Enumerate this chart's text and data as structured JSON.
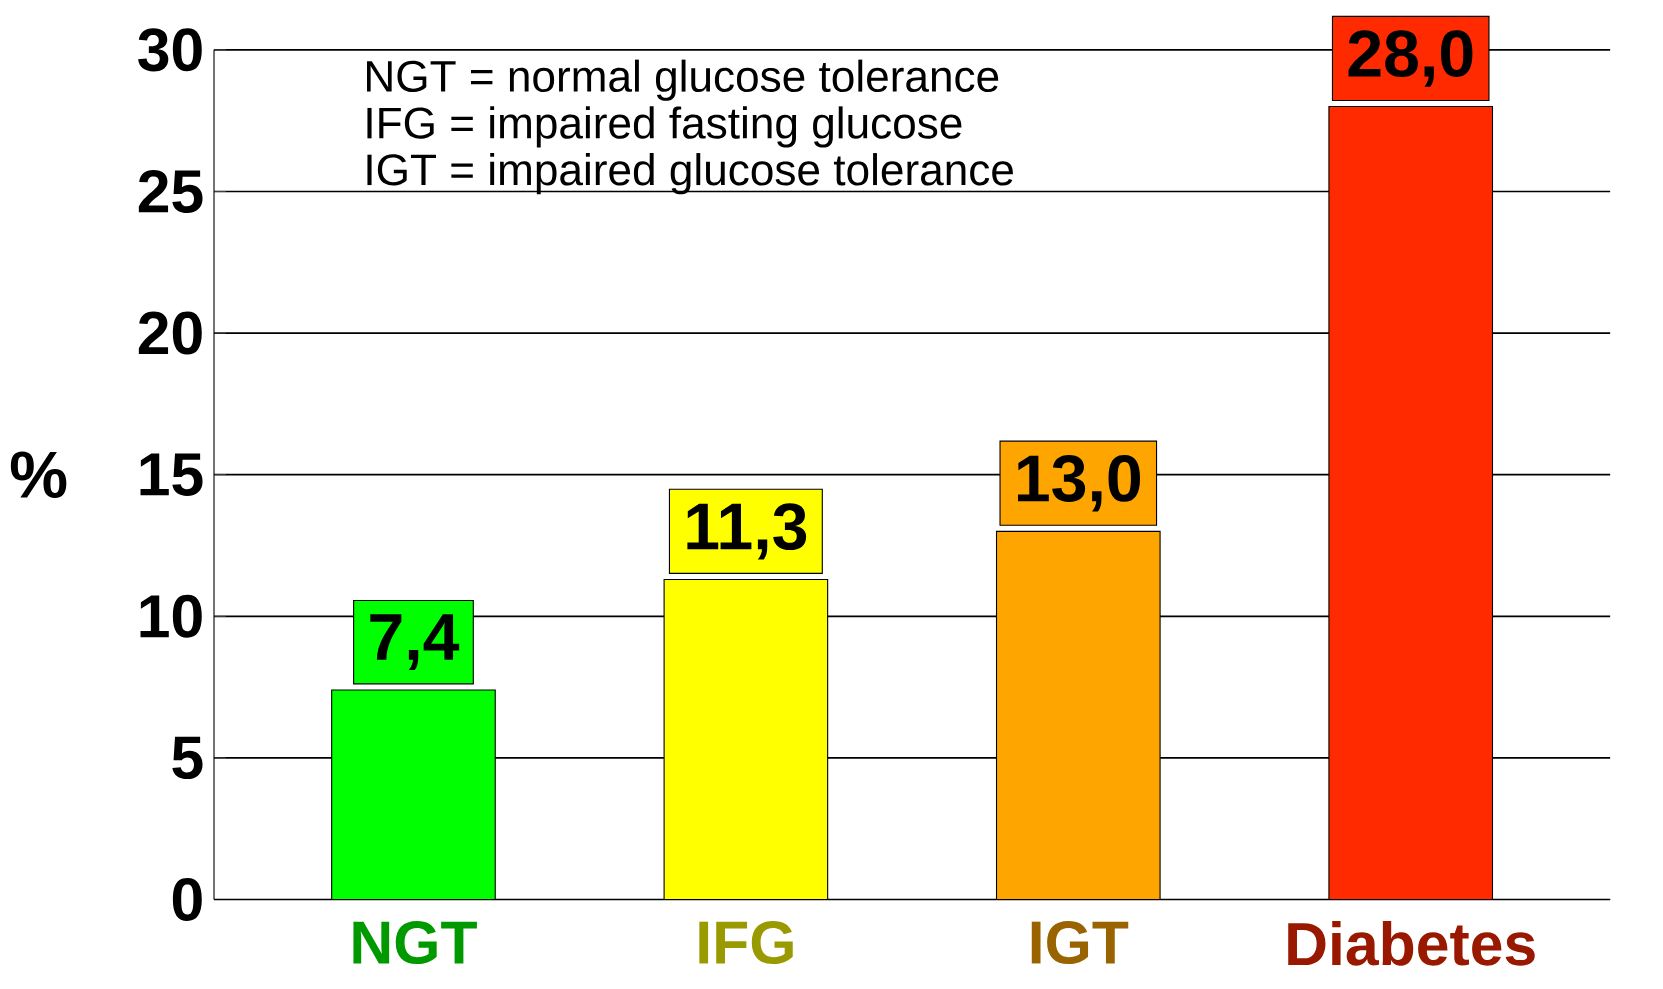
{
  "chart_data": {
    "type": "bar",
    "ylabel": "%",
    "categories": [
      "NGT",
      "IFG",
      "IGT",
      "Diabetes"
    ],
    "values": [
      7.4,
      11.3,
      13.0,
      28.0
    ],
    "colors": [
      "#00ff00",
      "#ffff00",
      "#ffa500",
      "#ff2a00"
    ],
    "value_labels": [
      "7,4",
      "11,3",
      "13,0",
      "28,0"
    ],
    "ylim": [
      0,
      30
    ],
    "yticks": [
      0,
      5,
      10,
      15,
      20,
      25,
      30
    ],
    "grid": "y",
    "annotations": [
      "NGT = normal glucose tolerance",
      "IFG = impaired fasting glucose",
      "IGT = impaired glucose tolerance"
    ]
  }
}
